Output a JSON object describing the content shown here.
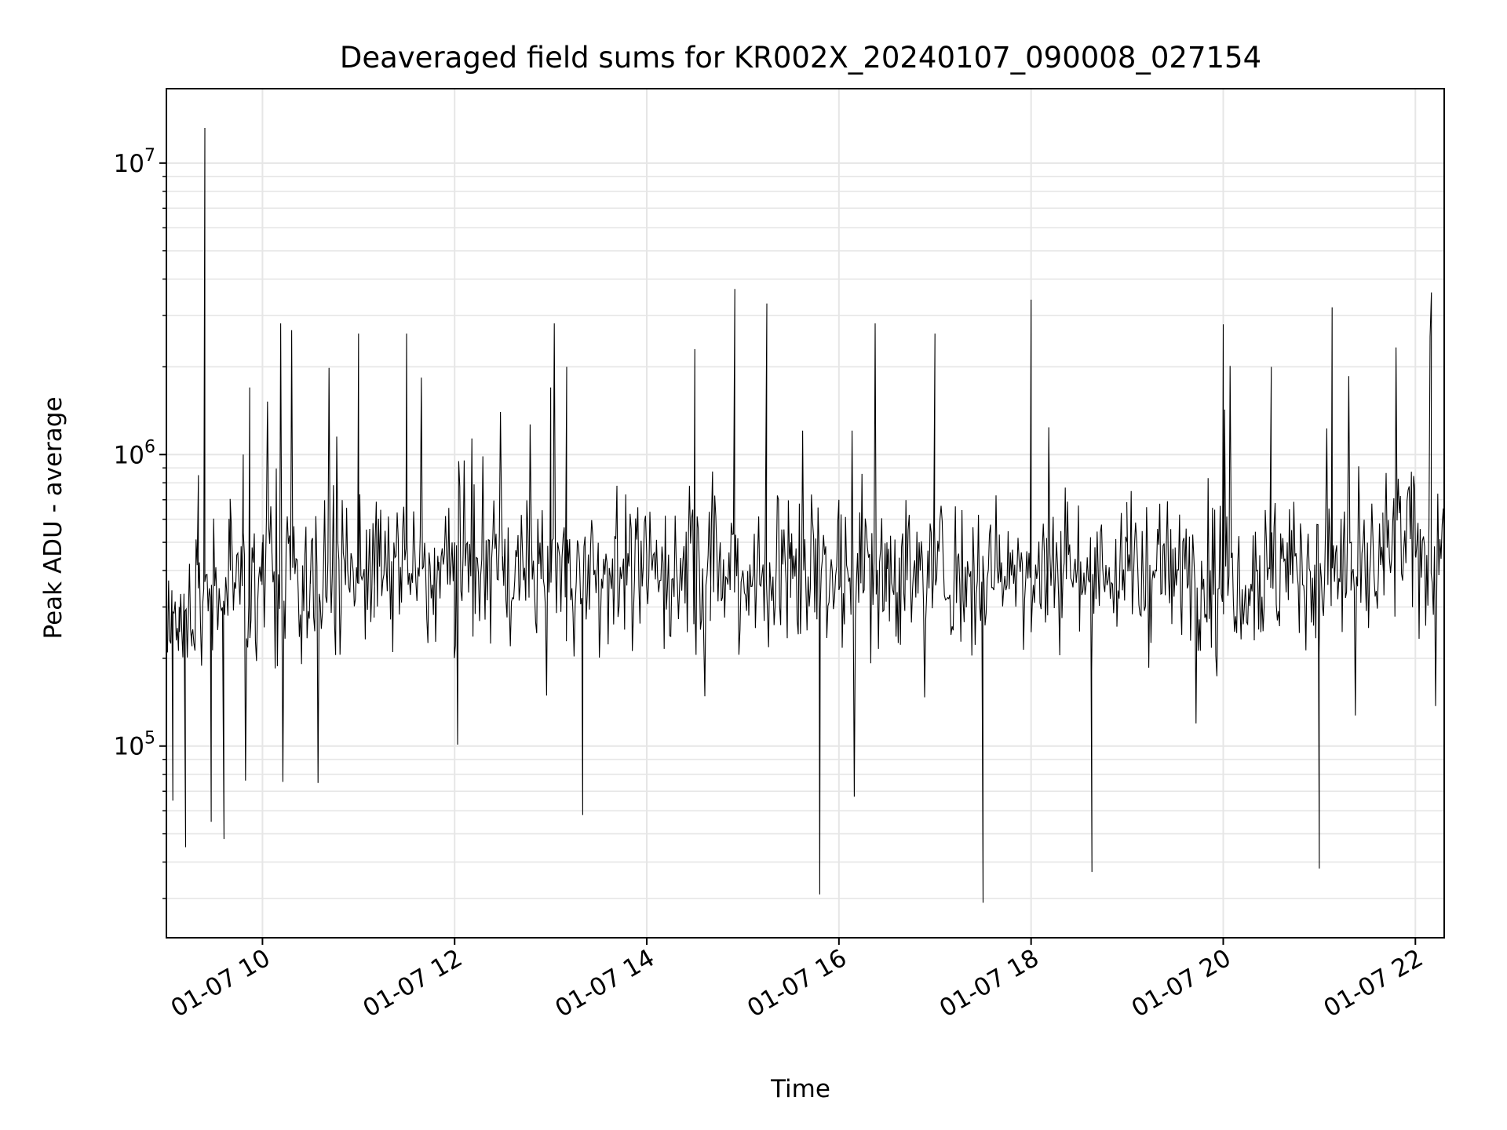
{
  "chart_data": {
    "type": "line",
    "title": "Deaveraged field sums for KR002X_20240107_090008_027154",
    "xlabel": "Time",
    "ylabel": "Peak ADU - average",
    "yscale": "log",
    "ylim": [
      22000,
      18000000
    ],
    "xlim": [
      "2024-01-07 09:00",
      "2024-01-07 22:18"
    ],
    "grid": true,
    "line_color": "#000000",
    "x_ticks": [
      {
        "t": "2024-01-07 10:00",
        "label": "01-07 10"
      },
      {
        "t": "2024-01-07 12:00",
        "label": "01-07 12"
      },
      {
        "t": "2024-01-07 14:00",
        "label": "01-07 14"
      },
      {
        "t": "2024-01-07 16:00",
        "label": "01-07 16"
      },
      {
        "t": "2024-01-07 18:00",
        "label": "01-07 18"
      },
      {
        "t": "2024-01-07 20:00",
        "label": "01-07 20"
      },
      {
        "t": "2024-01-07 22:00",
        "label": "01-07 22"
      }
    ],
    "y_ticks": [
      {
        "value": 100000,
        "base": "10",
        "exp": "5"
      },
      {
        "value": 1000000,
        "base": "10",
        "exp": "6"
      },
      {
        "value": 10000000,
        "base": "10",
        "exp": "7"
      }
    ],
    "series": [
      {
        "name": "",
        "x": [
          "2024-01-07 09:00",
          "2024-01-07 09:04",
          "2024-01-07 09:08",
          "2024-01-07 09:12",
          "2024-01-07 09:16",
          "2024-01-07 09:20",
          "2024-01-07 09:24",
          "2024-01-07 09:28",
          "2024-01-07 09:32",
          "2024-01-07 09:36",
          "2024-01-07 09:40",
          "2024-01-07 09:48",
          "2024-01-07 09:52",
          "2024-01-07 10:00",
          "2024-01-07 10:30",
          "2024-01-07 11:00",
          "2024-01-07 11:10",
          "2024-01-07 11:30",
          "2024-01-07 11:50",
          "2024-01-07 12:00",
          "2024-01-07 12:30",
          "2024-01-07 13:00",
          "2024-01-07 13:10",
          "2024-01-07 13:20",
          "2024-01-07 13:40",
          "2024-01-07 14:00",
          "2024-01-07 14:30",
          "2024-01-07 14:40",
          "2024-01-07 14:55",
          "2024-01-07 15:00",
          "2024-01-07 15:15",
          "2024-01-07 15:30",
          "2024-01-07 15:48",
          "2024-01-07 16:00",
          "2024-01-07 16:30",
          "2024-01-07 17:00",
          "2024-01-07 17:30",
          "2024-01-07 17:40",
          "2024-01-07 18:00",
          "2024-01-07 18:10",
          "2024-01-07 18:38",
          "2024-01-07 19:00",
          "2024-01-07 19:30",
          "2024-01-07 20:00",
          "2024-01-07 20:05",
          "2024-01-07 20:30",
          "2024-01-07 21:00",
          "2024-01-07 21:08",
          "2024-01-07 21:20",
          "2024-01-07 21:40",
          "2024-01-07 22:00",
          "2024-01-07 22:10",
          "2024-01-07 22:18"
        ],
        "values": [
          350000,
          65000,
          300000,
          45000,
          220000,
          850000,
          13200000,
          55000,
          250000,
          48000,
          400000,
          1000000,
          1700000,
          500000,
          400000,
          2600000,
          350000,
          2600000,
          400000,
          500000,
          400000,
          1700000,
          2000000,
          58000,
          400000,
          450000,
          2300000,
          350000,
          3700000,
          400000,
          3300000,
          500000,
          31000,
          700000,
          500000,
          2600000,
          29000,
          400000,
          3400000,
          400000,
          37000,
          500000,
          400000,
          2800000,
          500000,
          2000000,
          38000,
          3200000,
          500000,
          400000,
          450000,
          3600000,
          500000
        ]
      }
    ]
  }
}
